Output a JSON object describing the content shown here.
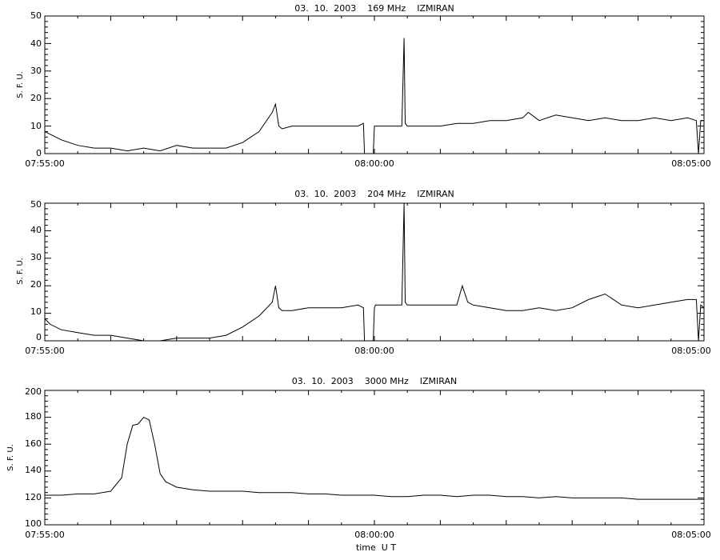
{
  "figure": {
    "xlabel": "time  U T"
  },
  "chart_data": [
    {
      "type": "line",
      "title": "03.  10.  2003    169 MHz    IZMIRAN",
      "ylabel": "S. F. U.",
      "xlim": [
        "07:55:00",
        "08:05:00"
      ],
      "xticks": [
        "07:55:00",
        "08:00:00",
        "08:05:00"
      ],
      "ylim": [
        0,
        50
      ],
      "yticks": [
        "0",
        "10",
        "20",
        "30",
        "40",
        "50"
      ],
      "grid": false,
      "series": [
        {
          "x": [
            "07:55:00",
            "07:55:05",
            "07:55:15",
            "07:55:30",
            "07:55:45",
            "07:56:00",
            "07:56:15",
            "07:56:30",
            "07:56:45",
            "07:57:00",
            "07:57:15",
            "07:57:30",
            "07:57:45",
            "07:58:00",
            "07:58:15",
            "07:58:27",
            "07:58:30",
            "07:58:33",
            "07:58:36",
            "07:58:45",
            "07:59:00",
            "07:59:15",
            "07:59:30",
            "07:59:45",
            "07:59:50",
            "07:59:51",
            "07:59:52",
            "07:59:59",
            "08:00:00",
            "08:00:01",
            "08:00:15",
            "08:00:25",
            "08:00:27",
            "08:00:28",
            "08:00:30",
            "08:00:45",
            "08:01:00",
            "08:01:15",
            "08:01:30",
            "08:01:45",
            "08:02:00",
            "08:02:15",
            "08:02:20",
            "08:02:30",
            "08:02:45",
            "08:03:00",
            "08:03:15",
            "08:03:30",
            "08:03:45",
            "08:04:00",
            "08:04:15",
            "08:04:30",
            "08:04:45",
            "08:04:53",
            "08:04:55",
            "08:04:57",
            "08:05:00"
          ],
          "values": [
            8,
            7,
            5,
            3,
            2,
            2,
            1,
            2,
            1,
            3,
            2,
            2,
            2,
            4,
            8,
            15,
            18,
            10,
            9,
            10,
            10,
            10,
            10,
            10,
            11,
            0,
            0,
            0,
            10,
            10,
            10,
            10,
            42,
            11,
            10,
            10,
            10,
            11,
            11,
            12,
            12,
            13,
            15,
            12,
            14,
            13,
            12,
            13,
            12,
            12,
            13,
            12,
            13,
            12,
            0,
            12,
            12
          ]
        }
      ]
    },
    {
      "type": "line",
      "title": "03.  10.  2003    204 MHz    IZMIRAN",
      "ylabel": "S. F. U.",
      "xlim": [
        "07:55:00",
        "08:05:00"
      ],
      "xticks": [
        "07:55:00",
        "08:00:00",
        "08:05:00"
      ],
      "ylim": [
        0,
        50
      ],
      "yticks": [
        "0",
        "10",
        "20",
        "30",
        "40",
        "50"
      ],
      "grid": false,
      "series": [
        {
          "x": [
            "07:55:00",
            "07:55:05",
            "07:55:15",
            "07:55:30",
            "07:55:45",
            "07:56:00",
            "07:56:15",
            "07:56:30",
            "07:56:45",
            "07:57:00",
            "07:57:15",
            "07:57:30",
            "07:57:45",
            "07:58:00",
            "07:58:15",
            "07:58:27",
            "07:58:30",
            "07:58:33",
            "07:58:36",
            "07:58:45",
            "07:59:00",
            "07:59:15",
            "07:59:30",
            "07:59:45",
            "07:59:50",
            "07:59:51",
            "07:59:52",
            "07:59:59",
            "08:00:00",
            "08:00:01",
            "08:00:15",
            "08:00:25",
            "08:00:27",
            "08:00:28",
            "08:00:30",
            "08:00:45",
            "08:01:00",
            "08:01:15",
            "08:01:20",
            "08:01:25",
            "08:01:30",
            "08:01:45",
            "08:02:00",
            "08:02:15",
            "08:02:30",
            "08:02:45",
            "08:03:00",
            "08:03:15",
            "08:03:30",
            "08:03:45",
            "08:04:00",
            "08:04:15",
            "08:04:30",
            "08:04:45",
            "08:04:53",
            "08:04:55",
            "08:04:57",
            "08:05:00"
          ],
          "values": [
            8,
            6,
            4,
            3,
            2,
            2,
            1,
            0,
            0,
            1,
            1,
            1,
            2,
            5,
            9,
            14,
            20,
            12,
            11,
            11,
            12,
            12,
            12,
            13,
            12,
            0,
            0,
            0,
            12,
            13,
            13,
            13,
            50,
            14,
            13,
            13,
            13,
            13,
            20,
            14,
            13,
            12,
            11,
            11,
            12,
            11,
            12,
            15,
            17,
            13,
            12,
            13,
            14,
            15,
            15,
            0,
            13,
            12
          ]
        }
      ]
    },
    {
      "type": "line",
      "title": "03.  10.  2003    3000 MHz    IZMIRAN",
      "ylabel": "S. F. U.",
      "xlabel": "time  U T",
      "xlim": [
        "07:55:00",
        "08:05:00"
      ],
      "xticks": [
        "07:55:00",
        "08:00:00",
        "08:05:00"
      ],
      "ylim": [
        100,
        200
      ],
      "yticks": [
        "100",
        "120",
        "140",
        "160",
        "180",
        "200"
      ],
      "grid": false,
      "series": [
        {
          "x": [
            "07:55:00",
            "07:55:15",
            "07:55:30",
            "07:55:45",
            "07:56:00",
            "07:56:10",
            "07:56:15",
            "07:56:20",
            "07:56:25",
            "07:56:30",
            "07:56:35",
            "07:56:40",
            "07:56:45",
            "07:56:50",
            "07:56:55",
            "07:57:00",
            "07:57:15",
            "07:57:30",
            "07:57:45",
            "07:58:00",
            "07:58:15",
            "07:58:30",
            "07:58:45",
            "07:59:00",
            "07:59:15",
            "07:59:30",
            "07:59:45",
            "08:00:00",
            "08:00:15",
            "08:00:30",
            "08:00:45",
            "08:01:00",
            "08:01:15",
            "08:01:30",
            "08:01:45",
            "08:02:00",
            "08:02:15",
            "08:02:30",
            "08:02:45",
            "08:03:00",
            "08:03:15",
            "08:03:30",
            "08:03:45",
            "08:04:00",
            "08:04:15",
            "08:04:30",
            "08:04:45",
            "08:05:00"
          ],
          "values": [
            122,
            122,
            123,
            123,
            125,
            135,
            160,
            174,
            175,
            180,
            178,
            160,
            138,
            132,
            130,
            128,
            126,
            125,
            125,
            125,
            124,
            124,
            124,
            123,
            123,
            122,
            122,
            122,
            121,
            121,
            122,
            122,
            121,
            122,
            122,
            121,
            121,
            120,
            121,
            120,
            120,
            120,
            120,
            119,
            119,
            119,
            119,
            119
          ]
        }
      ]
    }
  ]
}
